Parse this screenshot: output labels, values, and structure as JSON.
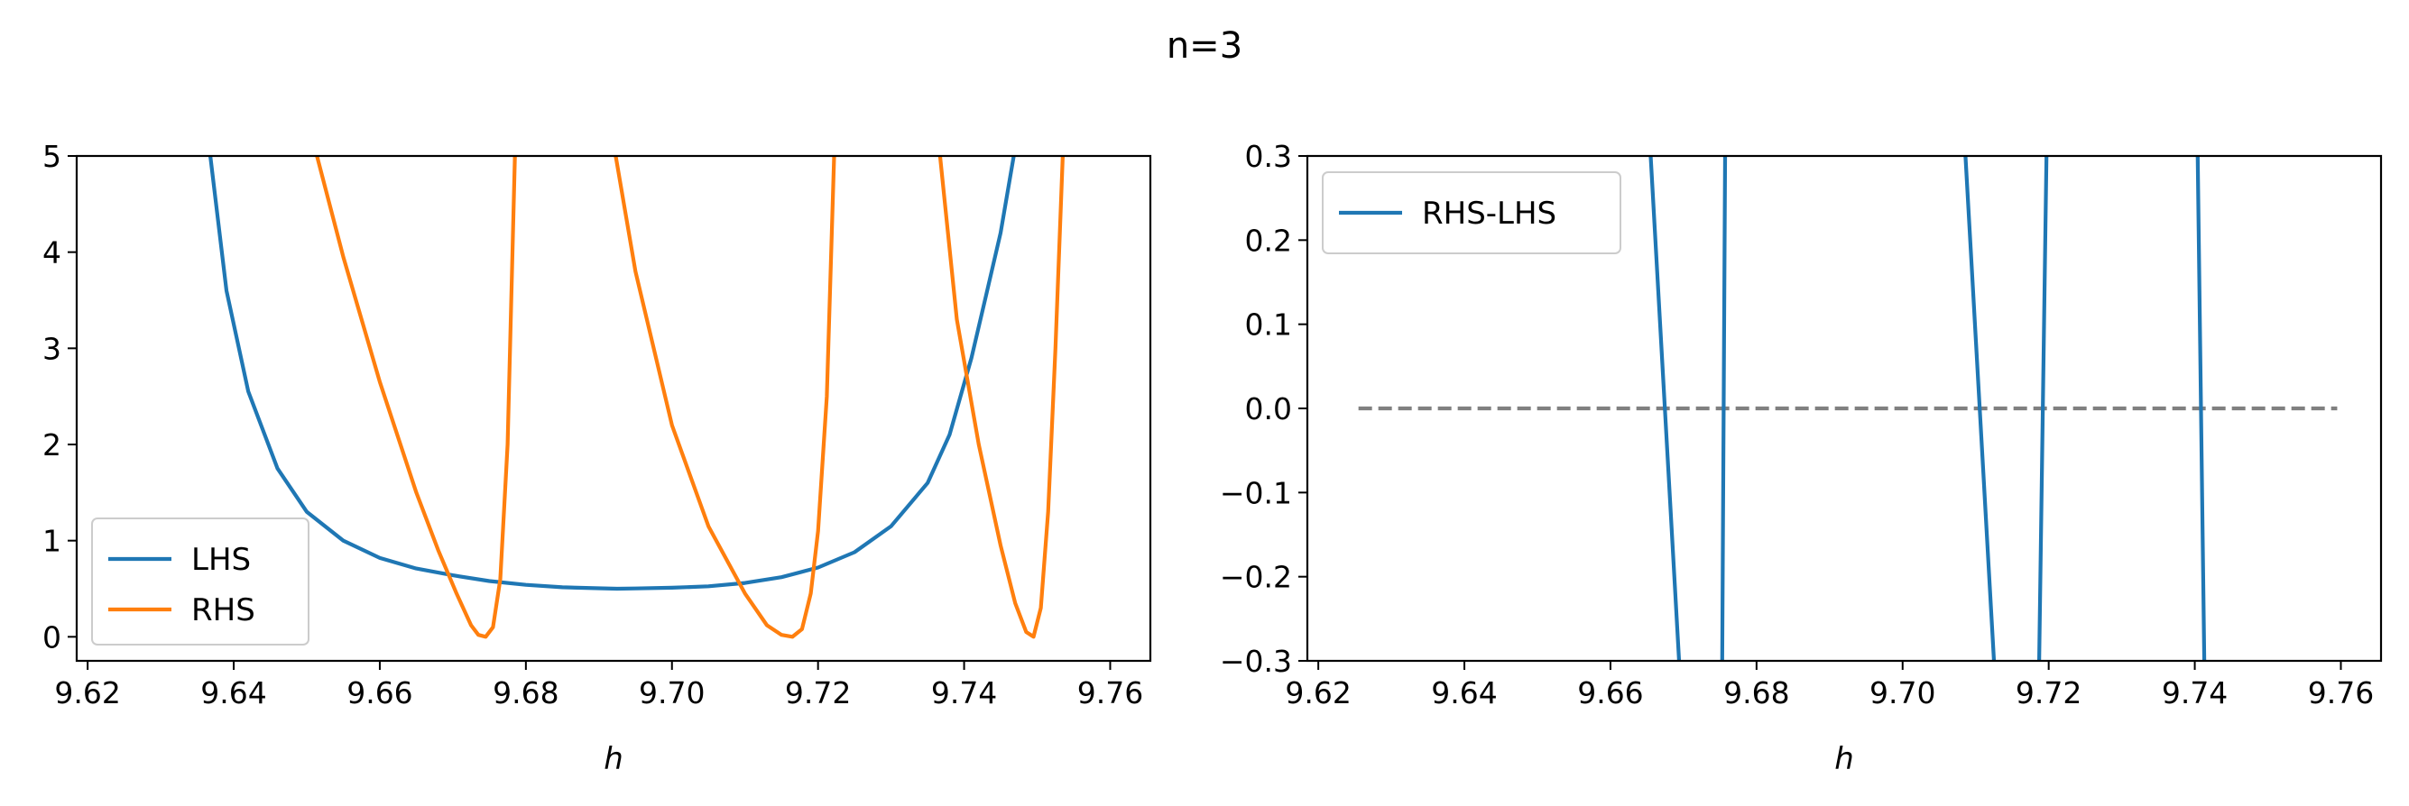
{
  "figure": {
    "suptitle": "n=3"
  },
  "colors": {
    "lhs": "#1f77b4",
    "rhs": "#ff7f0e",
    "diff": "#1f77b4",
    "zero_line": "#808080"
  },
  "chart_data": [
    {
      "type": "line",
      "title": "",
      "xlabel": "h",
      "ylabel": "",
      "xlim": [
        9.6185,
        9.7655
      ],
      "ylim": [
        -0.25,
        5.0
      ],
      "x_ticks": [
        9.62,
        9.64,
        9.66,
        9.68,
        9.7,
        9.72,
        9.74,
        9.76
      ],
      "x_tick_labels": [
        "9.62",
        "9.64",
        "9.66",
        "9.68",
        "9.70",
        "9.72",
        "9.74",
        "9.76"
      ],
      "y_ticks": [
        0,
        1,
        2,
        3,
        4,
        5
      ],
      "y_tick_labels": [
        "0",
        "1",
        "2",
        "3",
        "4",
        "5"
      ],
      "grid": false,
      "legend": {
        "placement": "lower-left",
        "entries": [
          "LHS",
          "RHS"
        ]
      },
      "series": [
        {
          "name": "LHS",
          "color": "#1f77b4",
          "x": [
            9.6368,
            9.639,
            9.642,
            9.646,
            9.65,
            9.655,
            9.66,
            9.665,
            9.67,
            9.675,
            9.68,
            9.685,
            9.69,
            9.6925,
            9.695,
            9.7,
            9.705,
            9.71,
            9.715,
            9.72,
            9.725,
            9.73,
            9.735,
            9.738,
            9.741,
            9.743,
            9.745,
            9.7468
          ],
          "y": [
            5.0,
            3.6,
            2.55,
            1.75,
            1.3,
            1.0,
            0.82,
            0.71,
            0.64,
            0.58,
            0.54,
            0.515,
            0.505,
            0.5,
            0.503,
            0.51,
            0.525,
            0.56,
            0.62,
            0.72,
            0.88,
            1.15,
            1.6,
            2.1,
            2.9,
            3.55,
            4.2,
            5.0
          ]
        },
        {
          "name": "RHS",
          "color": "#ff7f0e",
          "branches": [
            {
              "x": [
                9.6514,
                9.655,
                9.66,
                9.665,
                9.668,
                9.6705,
                9.6725,
                9.6735,
                9.6745,
                9.6755,
                9.6765,
                9.6775,
                9.6785
              ],
              "y": [
                5.0,
                3.95,
                2.65,
                1.5,
                0.9,
                0.45,
                0.12,
                0.02,
                0.0,
                0.1,
                0.6,
                2.0,
                5.0
              ]
            },
            {
              "x": [
                9.6923,
                9.695,
                9.7,
                9.705,
                9.71,
                9.713,
                9.715,
                9.7165,
                9.7178,
                9.719,
                9.72,
                9.7212,
                9.7222
              ],
              "y": [
                5.0,
                3.8,
                2.2,
                1.15,
                0.45,
                0.12,
                0.02,
                0.0,
                0.08,
                0.45,
                1.1,
                2.5,
                5.0
              ]
            },
            {
              "x": [
                9.7367,
                9.739,
                9.742,
                9.745,
                9.747,
                9.7485,
                9.7495,
                9.7505,
                9.7515,
                9.7525,
                9.7535
              ],
              "y": [
                5.0,
                3.3,
                2.0,
                0.95,
                0.35,
                0.05,
                0.0,
                0.3,
                1.3,
                3.0,
                5.0
              ]
            }
          ]
        }
      ]
    },
    {
      "type": "line",
      "title": "",
      "xlabel": "h",
      "ylabel": "",
      "xlim": [
        9.6185,
        9.7655
      ],
      "ylim": [
        -0.3,
        0.3
      ],
      "x_ticks": [
        9.62,
        9.64,
        9.66,
        9.68,
        9.7,
        9.72,
        9.74,
        9.76
      ],
      "x_tick_labels": [
        "9.62",
        "9.64",
        "9.66",
        "9.68",
        "9.70",
        "9.72",
        "9.74",
        "9.76"
      ],
      "y_ticks": [
        -0.3,
        -0.2,
        -0.1,
        0.0,
        0.1,
        0.2,
        0.3
      ],
      "y_tick_labels": [
        "−0.3",
        "−0.2",
        "−0.1",
        "0.0",
        "0.1",
        "0.2",
        "0.3"
      ],
      "grid": false,
      "legend": {
        "placement": "upper-left",
        "entries": [
          "RHS-LHS"
        ]
      },
      "series": [
        {
          "name": "RHS-LHS",
          "color": "#1f77b4",
          "branches": [
            {
              "x": [
                9.6655,
                9.6694
              ],
              "y": [
                0.3,
                -0.3
              ]
            },
            {
              "x": [
                9.6753,
                9.6757
              ],
              "y": [
                -0.3,
                0.3
              ]
            },
            {
              "x": [
                9.7086,
                9.7125
              ],
              "y": [
                0.3,
                -0.3
              ]
            },
            {
              "x": [
                9.7187,
                9.7197
              ],
              "y": [
                -0.3,
                0.3
              ]
            },
            {
              "x": [
                9.7404,
                9.7413
              ],
              "y": [
                0.3,
                -0.3
              ]
            }
          ]
        }
      ],
      "reference_line": {
        "y": 0.0,
        "x": [
          9.6255,
          9.7595
        ],
        "style": "dashed",
        "color": "#808080"
      }
    }
  ]
}
